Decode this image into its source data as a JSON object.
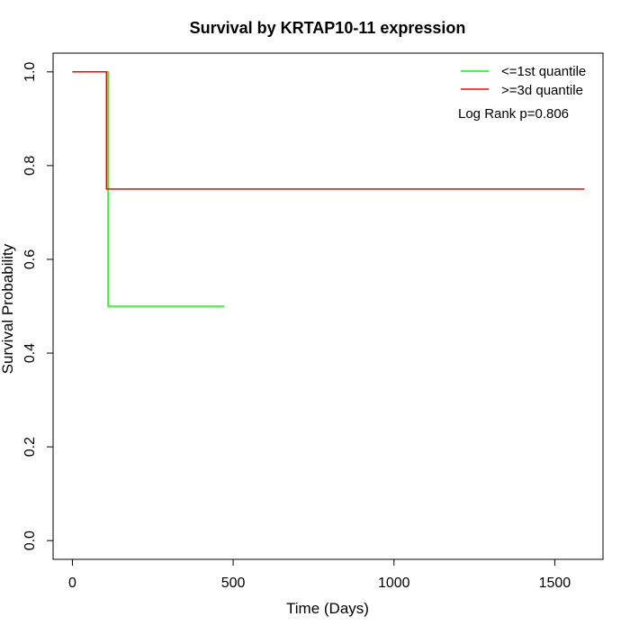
{
  "chart_data": {
    "type": "line",
    "title": "Survival by KRTAP10-11 expression",
    "xlabel": "Time (Days)",
    "ylabel": "Survival Probability",
    "xlim": [
      -60,
      1650
    ],
    "ylim": [
      -0.04,
      1.04
    ],
    "x_ticks": [
      0,
      500,
      1000,
      1500
    ],
    "x_tick_labels": [
      "0",
      "500",
      "1000",
      "1500"
    ],
    "y_ticks": [
      0.0,
      0.2,
      0.4,
      0.6,
      0.8,
      1.0
    ],
    "y_tick_labels": [
      "0.0",
      "0.2",
      "0.4",
      "0.6",
      "0.8",
      "1.0"
    ],
    "grid": false,
    "legend_position": "top-right",
    "series": [
      {
        "name": "<=1st quantile",
        "color": "#00ff00",
        "x": [
          0,
          111,
          111,
          472
        ],
        "y": [
          1.0,
          1.0,
          0.5,
          0.5
        ]
      },
      {
        "name": ">=3d quantile",
        "color": "#ff0000",
        "x": [
          0,
          106,
          106,
          1592
        ],
        "y": [
          1.0,
          1.0,
          0.75,
          0.75
        ]
      }
    ],
    "annotation": "Log Rank p=0.806"
  }
}
